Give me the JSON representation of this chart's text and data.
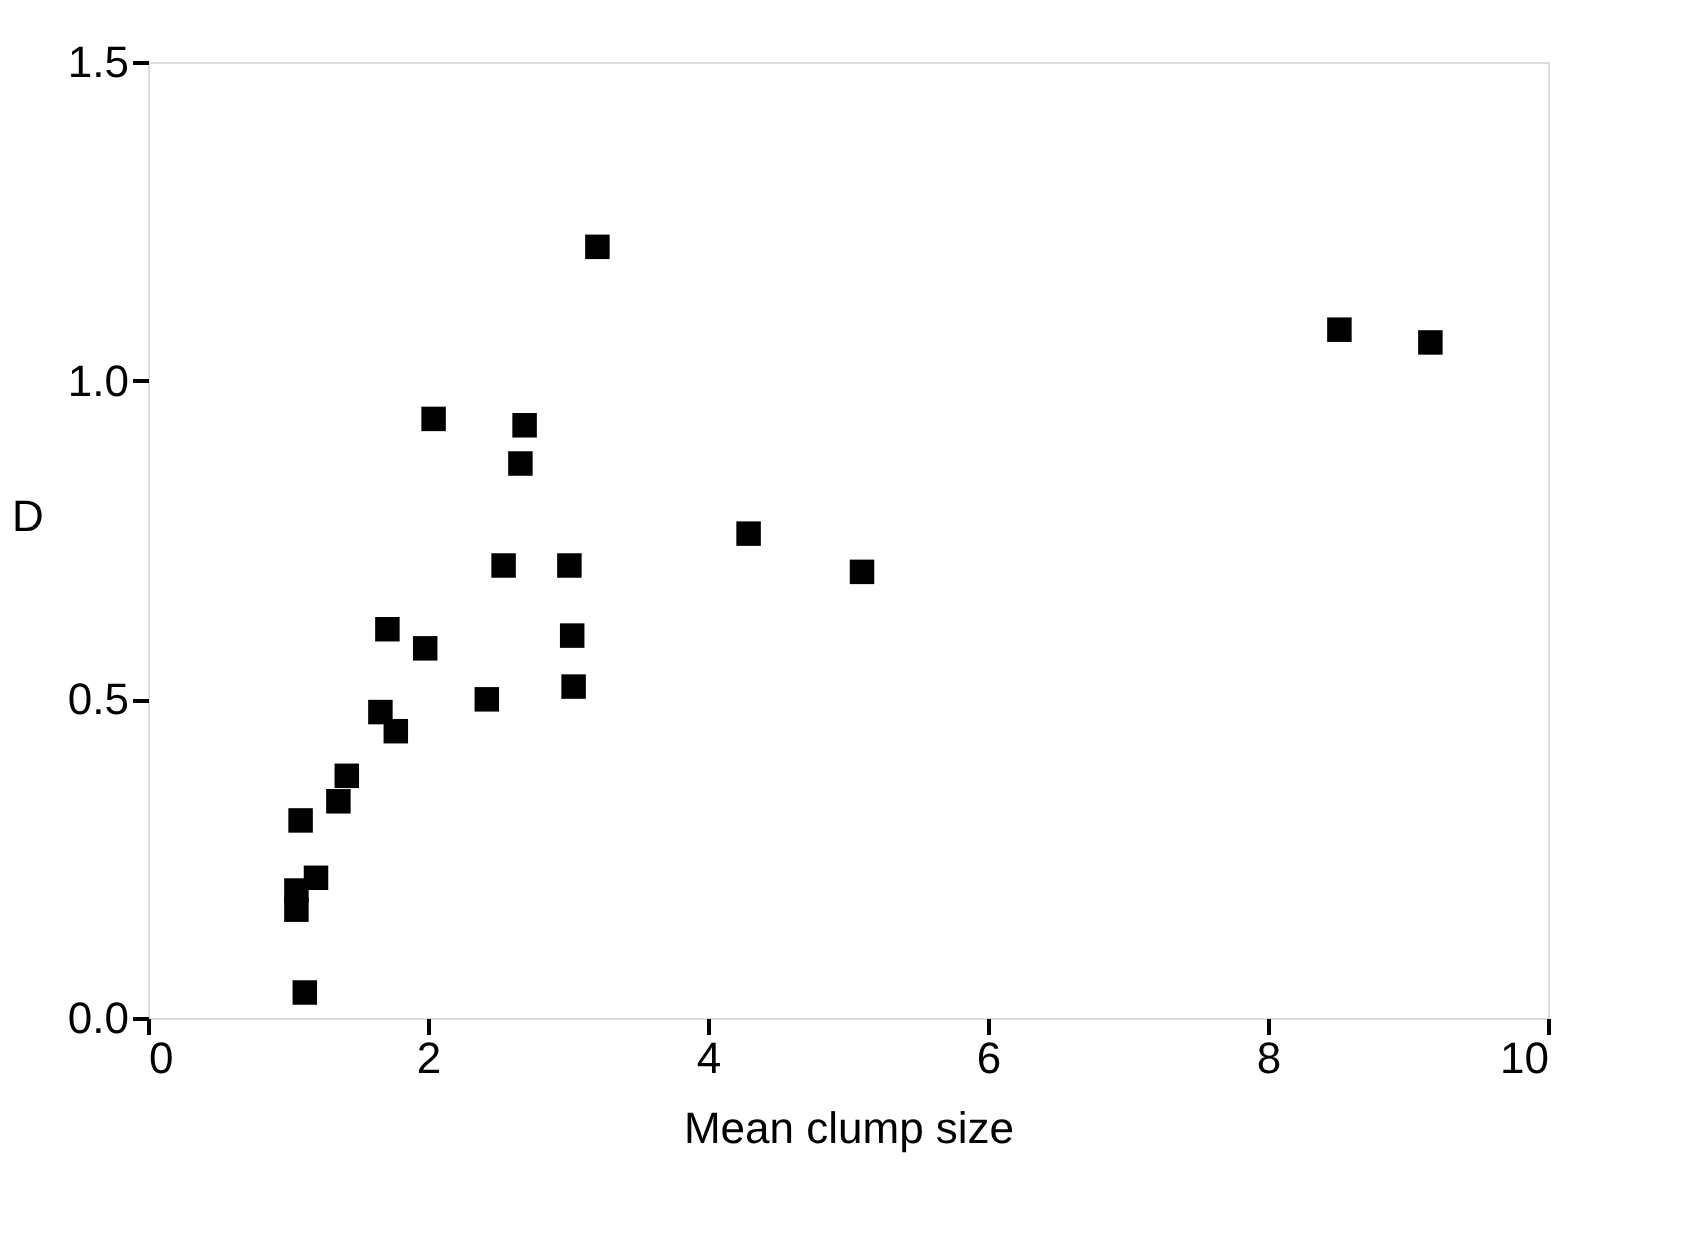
{
  "chart_data": {
    "type": "scatter",
    "xlabel": "Mean clump size",
    "ylabel": "D",
    "x": [
      1.12,
      1.06,
      1.06,
      1.2,
      1.09,
      1.36,
      1.42,
      1.66,
      1.77,
      1.71,
      1.98,
      2.04,
      2.42,
      2.54,
      2.66,
      2.69,
      3.01,
      3.03,
      3.04,
      3.21,
      4.29,
      5.1,
      8.51,
      9.16
    ],
    "values": [
      0.04,
      0.2,
      0.17,
      0.22,
      0.31,
      0.34,
      0.38,
      0.48,
      0.45,
      0.61,
      0.58,
      0.94,
      0.5,
      0.71,
      0.87,
      0.93,
      0.71,
      0.6,
      0.52,
      1.21,
      0.76,
      0.7,
      1.08,
      1.06
    ],
    "color": "#000000",
    "marker": "square",
    "xlim": [
      0,
      10
    ],
    "xticks": [
      0,
      2,
      4,
      6,
      8,
      10
    ],
    "ylim": [
      0,
      1.5
    ],
    "yticks": [
      {
        "value": 0,
        "label": "0.0"
      },
      {
        "value": 0.5,
        "label": "0.5"
      },
      {
        "value": 1.0,
        "label": "1.0"
      },
      {
        "value": 1.5,
        "label": "1.5"
      }
    ],
    "grid": false
  }
}
